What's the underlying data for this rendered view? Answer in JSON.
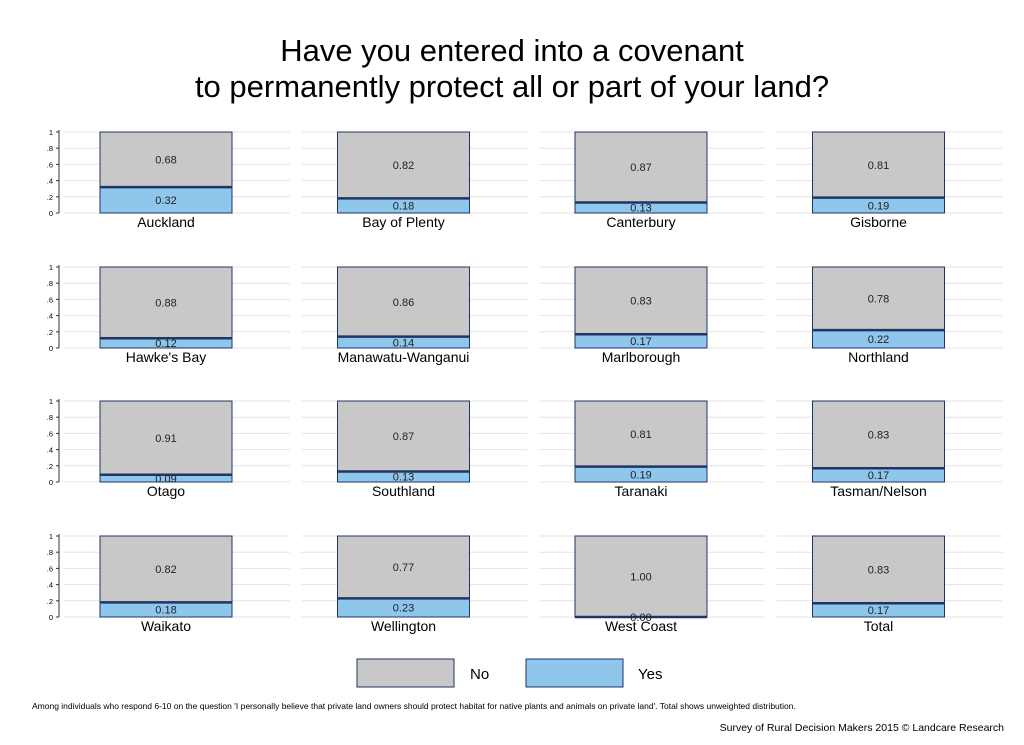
{
  "title_line1": "Have you entered into a covenant",
  "title_line2": "to permanently protect all or part of your land?",
  "colors": {
    "no": "#c8c8c8",
    "yes": "#8ec6ec",
    "border": "#1f3566",
    "grid": "#e4e4e4"
  },
  "chart_data": {
    "type": "bar",
    "layout": "faceted stacked bars, 4x4 grid",
    "ylim": [
      0,
      1
    ],
    "yticks": [
      "0",
      ".2",
      ".4",
      ".6",
      ".8",
      "1"
    ],
    "series_names": [
      "No",
      "Yes"
    ],
    "legend_position": "bottom",
    "panels": [
      {
        "name": "Auckland",
        "no": "0.68",
        "yes": "0.32"
      },
      {
        "name": "Bay of Plenty",
        "no": "0.82",
        "yes": "0.18"
      },
      {
        "name": "Canterbury",
        "no": "0.87",
        "yes": "0.13"
      },
      {
        "name": "Gisborne",
        "no": "0.81",
        "yes": "0.19"
      },
      {
        "name": "Hawke's Bay",
        "no": "0.88",
        "yes": "0.12"
      },
      {
        "name": "Manawatu-Wanganui",
        "no": "0.86",
        "yes": "0.14"
      },
      {
        "name": "Marlborough",
        "no": "0.83",
        "yes": "0.17"
      },
      {
        "name": "Northland",
        "no": "0.78",
        "yes": "0.22"
      },
      {
        "name": "Otago",
        "no": "0.91",
        "yes": "0.09"
      },
      {
        "name": "Southland",
        "no": "0.87",
        "yes": "0.13"
      },
      {
        "name": "Taranaki",
        "no": "0.81",
        "yes": "0.19"
      },
      {
        "name": "Tasman/Nelson",
        "no": "0.83",
        "yes": "0.17"
      },
      {
        "name": "Waikato",
        "no": "0.82",
        "yes": "0.18"
      },
      {
        "name": "Wellington",
        "no": "0.77",
        "yes": "0.23"
      },
      {
        "name": "West Coast",
        "no": "1.00",
        "yes": "0.00"
      },
      {
        "name": "Total",
        "no": "0.83",
        "yes": "0.17"
      }
    ]
  },
  "legend": {
    "no_label": "No",
    "yes_label": "Yes"
  },
  "footnote": "Among individuals who respond 6-10 on the question 'I personally believe that private land owners should protect habitat for native plants and animals on private land'. Total shows unweighted distribution.",
  "credit": "Survey of Rural Decision Makers 2015 © Landcare Research"
}
